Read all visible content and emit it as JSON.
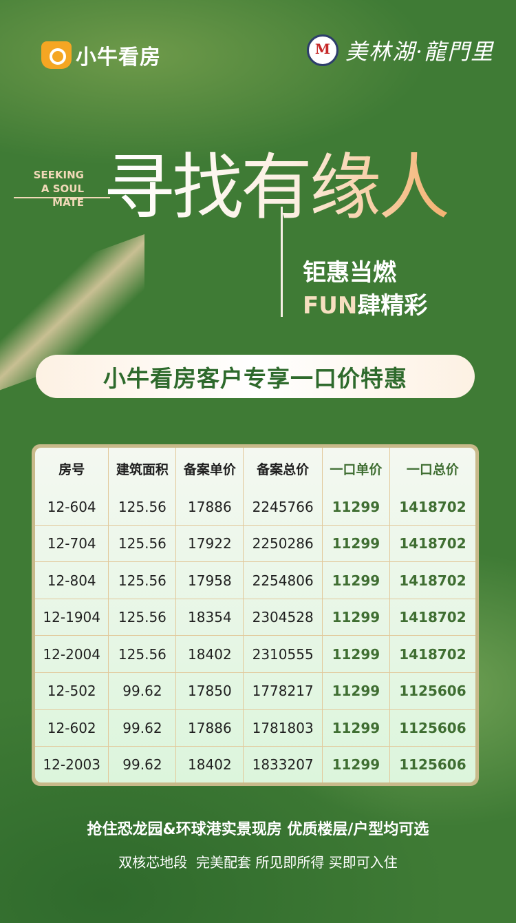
{
  "brand_left": {
    "name": "小牛看房",
    "icon": "bull-head-search-icon",
    "color": "#f5a623"
  },
  "brand_right": {
    "name": "美林湖·龍門里",
    "icon": "seal-peacock-feather-icon"
  },
  "hero": {
    "english": [
      "SEEKING",
      "A SOUL MATE"
    ],
    "title": "寻找有缘人",
    "subtitle_1": "钜惠当燃",
    "subtitle_2_prefix": "FUN",
    "subtitle_2_rest": "肆精彩"
  },
  "banner": "小牛看房客户专享一口价特惠",
  "table": {
    "headers": [
      "房号",
      "建筑面积",
      "备案单价",
      "备案总价",
      "一口单价",
      "一口总价"
    ],
    "rows": [
      [
        "12-604",
        "125.56",
        "17886",
        "2245766",
        "11299",
        "1418702"
      ],
      [
        "12-704",
        "125.56",
        "17922",
        "2250286",
        "11299",
        "1418702"
      ],
      [
        "12-804",
        "125.56",
        "17958",
        "2254806",
        "11299",
        "1418702"
      ],
      [
        "12-1904",
        "125.56",
        "18354",
        "2304528",
        "11299",
        "1418702"
      ],
      [
        "12-2004",
        "125.56",
        "18402",
        "2310555",
        "11299",
        "1418702"
      ],
      [
        "12-502",
        "99.62",
        "17850",
        "1778217",
        "11299",
        "1125606"
      ],
      [
        "12-602",
        "99.62",
        "17886",
        "1781803",
        "11299",
        "1125606"
      ],
      [
        "12-2003",
        "99.62",
        "18402",
        "1833207",
        "11299",
        "1125606"
      ]
    ]
  },
  "footer": {
    "line_1": "抢住恐龙园&环球港实景现房 优质楼层/户型均可选",
    "line_2": "双核芯地段  完美配套 所见即所得 买即可入住"
  },
  "colors": {
    "background": "#3f7b35",
    "accent_green": "#3f6e32",
    "accent_peach": "#f4b271"
  }
}
